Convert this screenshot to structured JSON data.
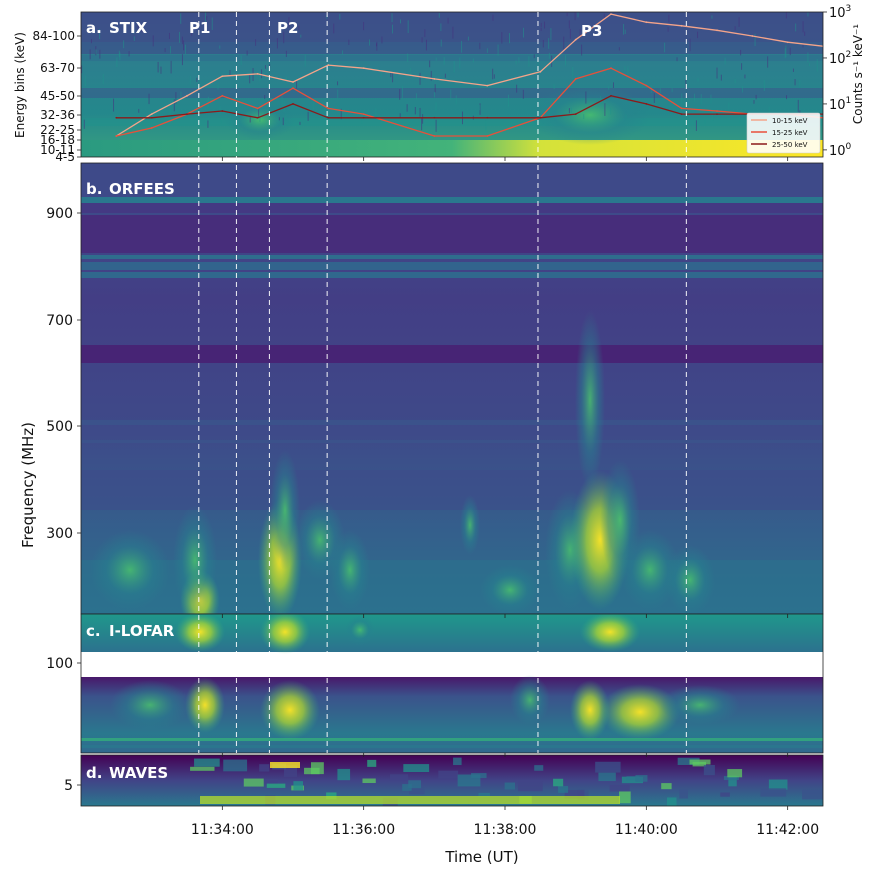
{
  "chart_data": [
    {
      "panel": "a",
      "type": "heatmap",
      "title": "STIX",
      "label": "a.",
      "ylabel": "Energy bins (keV)",
      "ylabel_right": "Counts s⁻¹ keV⁻¹",
      "y_ticks": [
        "84-100",
        "63-70",
        "45-50",
        "32-36",
        "22-25",
        "16-18",
        "10-11",
        "4-5"
      ],
      "right_ticks": [
        {
          "base": "10",
          "exp": "3"
        },
        {
          "base": "10",
          "exp": "2"
        },
        {
          "base": "10",
          "exp": "1"
        },
        {
          "base": "10",
          "exp": "0"
        }
      ],
      "right_scale": "log",
      "right_ylim": [
        0.7,
        1000
      ],
      "legend_position": "bottom-right",
      "series": [
        {
          "name": "10-15 keV",
          "color": "#f4a48a",
          "x": [
            "11:32:30",
            "11:33:00",
            "11:33:30",
            "11:34:00",
            "11:34:30",
            "11:35:00",
            "11:35:30",
            "11:36:00",
            "11:37:00",
            "11:37:45",
            "11:38:30",
            "11:39:00",
            "11:39:30",
            "11:40:00",
            "11:40:30",
            "11:41:00",
            "11:41:30",
            "11:42:00",
            "11:42:30"
          ],
          "y": [
            2,
            6,
            15,
            40,
            45,
            30,
            70,
            60,
            35,
            25,
            50,
            250,
            900,
            600,
            500,
            400,
            300,
            220,
            180
          ]
        },
        {
          "name": "15-25 keV",
          "color": "#e8503a",
          "x": [
            "11:32:30",
            "11:33:00",
            "11:33:30",
            "11:34:00",
            "11:34:30",
            "11:35:00",
            "11:35:30",
            "11:36:00",
            "11:37:00",
            "11:37:45",
            "11:38:30",
            "11:39:00",
            "11:39:30",
            "11:40:00",
            "11:40:30",
            "11:41:00",
            "11:41:30",
            "11:42:00",
            "11:42:30"
          ],
          "y": [
            2,
            3,
            6,
            15,
            8,
            22,
            8,
            6,
            2,
            2,
            5,
            35,
            60,
            25,
            8,
            7,
            6,
            6,
            5
          ]
        },
        {
          "name": "25-50 keV",
          "color": "#8b1a1a",
          "x": [
            "11:32:30",
            "11:33:00",
            "11:33:30",
            "11:34:00",
            "11:34:30",
            "11:35:00",
            "11:35:30",
            "11:36:00",
            "11:37:00",
            "11:37:45",
            "11:38:30",
            "11:39:00",
            "11:39:30",
            "11:40:00",
            "11:40:30",
            "11:41:00",
            "11:41:30",
            "11:42:00",
            "11:42:30"
          ],
          "y": [
            5,
            5,
            6,
            7,
            5,
            10,
            5,
            5,
            5,
            5,
            5,
            6,
            15,
            10,
            6,
            6,
            6,
            6,
            6
          ]
        }
      ],
      "annotations": [
        "P1",
        "P2",
        "P3"
      ]
    },
    {
      "panel": "b",
      "type": "heatmap",
      "title": "ORFEES",
      "label": "b.",
      "y_ticks": [
        900,
        700,
        500,
        300
      ]
    },
    {
      "panel": "c",
      "type": "heatmap",
      "title": "I-LOFAR",
      "label": "c.",
      "y_ticks": [
        100
      ]
    },
    {
      "panel": "d",
      "type": "heatmap",
      "title": "WAVES",
      "label": "d.",
      "y_ticks": [
        5
      ]
    }
  ],
  "shared": {
    "ylabel": "Frequency (MHz)",
    "xlabel": "Time (UT)",
    "x_ticks": [
      "11:34:00",
      "11:36:00",
      "11:38:00",
      "11:40:00",
      "11:42:00"
    ],
    "xlim": [
      "11:32:00",
      "11:42:30"
    ],
    "markers": [
      "11:33:40",
      "11:34:12",
      "11:34:40",
      "11:35:29",
      "11:38:28",
      "11:40:34"
    ]
  }
}
